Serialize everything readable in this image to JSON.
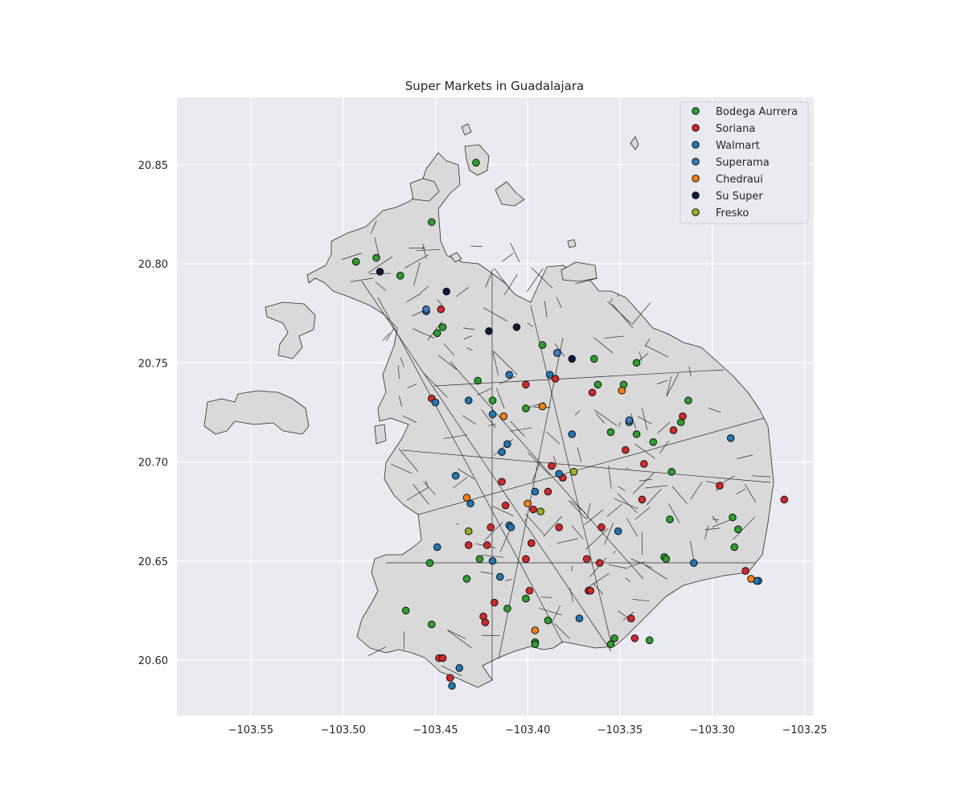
{
  "chart_data": {
    "type": "scatter",
    "title": "Super Markets in Guadalajara",
    "xlabel": "",
    "ylabel": "",
    "xlim": [
      -103.59,
      -103.245
    ],
    "ylim": [
      20.572,
      20.884
    ],
    "x_ticks": [
      -103.55,
      -103.5,
      -103.45,
      -103.4,
      -103.35,
      -103.3,
      -103.25
    ],
    "x_tick_labels": [
      "−103.55",
      "−103.50",
      "−103.45",
      "−103.40",
      "−103.35",
      "−103.30",
      "−103.25"
    ],
    "y_ticks": [
      20.6,
      20.65,
      20.7,
      20.75,
      20.8,
      20.85
    ],
    "y_tick_labels": [
      "20.60",
      "20.65",
      "20.70",
      "20.75",
      "20.80",
      "20.85"
    ],
    "grid": true,
    "legend_position": "top-right",
    "background_map": "municipal neighborhood polygons (light gray fill, dark outlines)",
    "series": [
      {
        "name": "Bodega Aurrera",
        "color": "#2ca02c",
        "points": [
          [
            -103.428,
            20.851
          ],
          [
            -103.452,
            20.821
          ],
          [
            -103.493,
            20.801
          ],
          [
            -103.482,
            20.803
          ],
          [
            -103.469,
            20.794
          ],
          [
            -103.446,
            20.768
          ],
          [
            -103.449,
            20.765
          ],
          [
            -103.392,
            20.759
          ],
          [
            -103.364,
            20.752
          ],
          [
            -103.341,
            20.75
          ],
          [
            -103.427,
            20.741
          ],
          [
            -103.419,
            20.731
          ],
          [
            -103.362,
            20.739
          ],
          [
            -103.348,
            20.739
          ],
          [
            -103.313,
            20.731
          ],
          [
            -103.401,
            20.727
          ],
          [
            -103.317,
            20.72
          ],
          [
            -103.355,
            20.715
          ],
          [
            -103.341,
            20.714
          ],
          [
            -103.332,
            20.71
          ],
          [
            -103.322,
            20.695
          ],
          [
            -103.323,
            20.671
          ],
          [
            -103.289,
            20.672
          ],
          [
            -103.286,
            20.666
          ],
          [
            -103.288,
            20.657
          ],
          [
            -103.326,
            20.652
          ],
          [
            -103.325,
            20.651
          ],
          [
            -103.453,
            20.649
          ],
          [
            -103.426,
            20.651
          ],
          [
            -103.433,
            20.641
          ],
          [
            -103.401,
            20.631
          ],
          [
            -103.411,
            20.626
          ],
          [
            -103.466,
            20.625
          ],
          [
            -103.452,
            20.618
          ],
          [
            -103.389,
            20.62
          ],
          [
            -103.396,
            20.609
          ],
          [
            -103.396,
            20.608
          ],
          [
            -103.353,
            20.611
          ],
          [
            -103.355,
            20.608
          ],
          [
            -103.334,
            20.61
          ]
        ]
      },
      {
        "name": "Soriana",
        "color": "#d62728",
        "points": [
          [
            -103.447,
            20.777
          ],
          [
            -103.401,
            20.739
          ],
          [
            -103.385,
            20.742
          ],
          [
            -103.365,
            20.735
          ],
          [
            -103.452,
            20.732
          ],
          [
            -103.316,
            20.723
          ],
          [
            -103.321,
            20.716
          ],
          [
            -103.347,
            20.706
          ],
          [
            -103.337,
            20.699
          ],
          [
            -103.387,
            20.698
          ],
          [
            -103.381,
            20.692
          ],
          [
            -103.414,
            20.69
          ],
          [
            -103.296,
            20.688
          ],
          [
            -103.261,
            20.681
          ],
          [
            -103.389,
            20.685
          ],
          [
            -103.338,
            20.681
          ],
          [
            -103.412,
            20.678
          ],
          [
            -103.397,
            20.676
          ],
          [
            -103.42,
            20.667
          ],
          [
            -103.383,
            20.667
          ],
          [
            -103.36,
            20.667
          ],
          [
            -103.398,
            20.659
          ],
          [
            -103.432,
            20.658
          ],
          [
            -103.422,
            20.658
          ],
          [
            -103.401,
            20.651
          ],
          [
            -103.368,
            20.651
          ],
          [
            -103.361,
            20.649
          ],
          [
            -103.282,
            20.645
          ],
          [
            -103.399,
            20.635
          ],
          [
            -103.367,
            20.635
          ],
          [
            -103.366,
            20.635
          ],
          [
            -103.418,
            20.629
          ],
          [
            -103.424,
            20.622
          ],
          [
            -103.423,
            20.619
          ],
          [
            -103.344,
            20.621
          ],
          [
            -103.342,
            20.611
          ],
          [
            -103.448,
            20.601
          ],
          [
            -103.446,
            20.601
          ],
          [
            -103.442,
            20.591
          ]
        ]
      },
      {
        "name": "Walmart",
        "color": "#1f77b4",
        "points": [
          [
            -103.455,
            20.776
          ],
          [
            -103.384,
            20.755
          ],
          [
            -103.388,
            20.744
          ],
          [
            -103.41,
            20.744
          ],
          [
            -103.432,
            20.731
          ],
          [
            -103.45,
            20.73
          ],
          [
            -103.419,
            20.724
          ],
          [
            -103.345,
            20.72
          ],
          [
            -103.376,
            20.714
          ],
          [
            -103.29,
            20.712
          ],
          [
            -103.411,
            20.709
          ],
          [
            -103.414,
            20.705
          ],
          [
            -103.383,
            20.694
          ],
          [
            -103.439,
            20.693
          ],
          [
            -103.396,
            20.685
          ],
          [
            -103.431,
            20.679
          ],
          [
            -103.41,
            20.668
          ],
          [
            -103.409,
            20.667
          ],
          [
            -103.351,
            20.665
          ],
          [
            -103.449,
            20.657
          ],
          [
            -103.419,
            20.65
          ],
          [
            -103.31,
            20.649
          ],
          [
            -103.415,
            20.642
          ],
          [
            -103.275,
            20.64
          ],
          [
            -103.276,
            20.64
          ],
          [
            -103.372,
            20.621
          ],
          [
            -103.437,
            20.596
          ],
          [
            -103.441,
            20.587
          ]
        ]
      },
      {
        "name": "Superama",
        "color": "#3a7bbf",
        "points": [
          [
            -103.455,
            20.777
          ],
          [
            -103.384,
            20.755
          ],
          [
            -103.345,
            20.721
          ]
        ]
      },
      {
        "name": "Chedraui",
        "color": "#ff7f0e",
        "points": [
          [
            -103.349,
            20.736
          ],
          [
            -103.392,
            20.728
          ],
          [
            -103.413,
            20.723
          ],
          [
            -103.433,
            20.682
          ],
          [
            -103.4,
            20.679
          ],
          [
            -103.396,
            20.615
          ],
          [
            -103.279,
            20.641
          ]
        ]
      },
      {
        "name": "Su Super",
        "color": "#0d1b3e",
        "points": [
          [
            -103.48,
            20.796
          ],
          [
            -103.444,
            20.786
          ],
          [
            -103.421,
            20.766
          ],
          [
            -103.406,
            20.768
          ],
          [
            -103.376,
            20.752
          ]
        ]
      },
      {
        "name": "Fresko",
        "color": "#9ab024",
        "points": [
          [
            -103.375,
            20.695
          ],
          [
            -103.432,
            20.665
          ],
          [
            -103.393,
            20.675
          ]
        ]
      }
    ]
  }
}
